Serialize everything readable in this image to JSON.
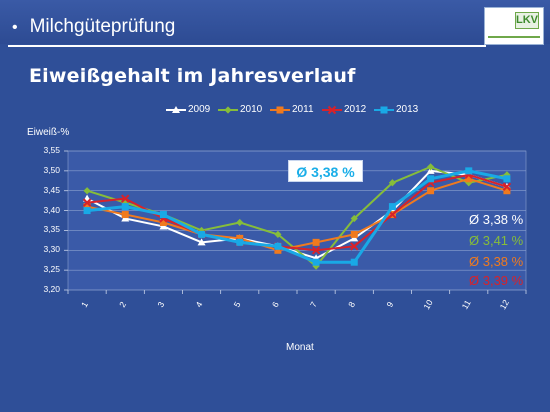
{
  "slide": {
    "bullet": "•",
    "title": "Milchgüteprüfung",
    "subtitle": "Eiweißgehalt im Jahresverlauf",
    "logo_text": "LKV"
  },
  "chart_data": {
    "type": "line",
    "title": "",
    "ylabel": "Eiweiß-%",
    "xlabel": "Monat",
    "categories": [
      "1",
      "2",
      "3",
      "4",
      "5",
      "6",
      "7",
      "8",
      "9",
      "10",
      "11",
      "12"
    ],
    "ylim": [
      3.2,
      3.55
    ],
    "yticks": [
      "3,20",
      "3,25",
      "3,30",
      "3,35",
      "3,40",
      "3,45",
      "3,50",
      "3,55"
    ],
    "ytick_values": [
      3.2,
      3.25,
      3.3,
      3.35,
      3.4,
      3.45,
      3.5,
      3.55
    ],
    "grid": true,
    "legend_position": "top",
    "series": [
      {
        "name": "2009",
        "color": "#ffffff",
        "marker": "triangle",
        "values": [
          3.43,
          3.38,
          3.36,
          3.32,
          3.33,
          3.31,
          3.28,
          3.33,
          3.4,
          3.5,
          3.49,
          3.46
        ]
      },
      {
        "name": "2010",
        "color": "#86bd3a",
        "marker": "diamond",
        "values": [
          3.45,
          3.42,
          3.39,
          3.35,
          3.37,
          3.34,
          3.26,
          3.38,
          3.47,
          3.51,
          3.47,
          3.49
        ]
      },
      {
        "name": "2011",
        "color": "#f07a1e",
        "marker": "square",
        "values": [
          3.41,
          3.39,
          3.37,
          3.34,
          3.33,
          3.3,
          3.32,
          3.34,
          3.39,
          3.45,
          3.48,
          3.45
        ]
      },
      {
        "name": "2012",
        "color": "#d8222a",
        "marker": "x",
        "values": [
          3.42,
          3.43,
          3.38,
          3.34,
          3.32,
          3.31,
          3.3,
          3.31,
          3.39,
          3.47,
          3.49,
          3.46
        ]
      },
      {
        "name": "2013",
        "color": "#19a9e6",
        "marker": "square",
        "values": [
          3.4,
          3.41,
          3.39,
          3.34,
          3.32,
          3.31,
          3.27,
          3.27,
          3.41,
          3.48,
          3.5,
          3.48
        ]
      }
    ],
    "annotations": {
      "box": {
        "text": "Ø 3,38 %",
        "color": "#1baee8"
      },
      "averages": [
        {
          "text": "Ø 3,38  %",
          "color": "#ffffff"
        },
        {
          "text": "Ø 3,41  %",
          "color": "#86bd3a"
        },
        {
          "text": "Ø 3,38  %",
          "color": "#f07a1e"
        },
        {
          "text": "Ø 3,39 %",
          "color": "#d8222a"
        }
      ]
    }
  }
}
